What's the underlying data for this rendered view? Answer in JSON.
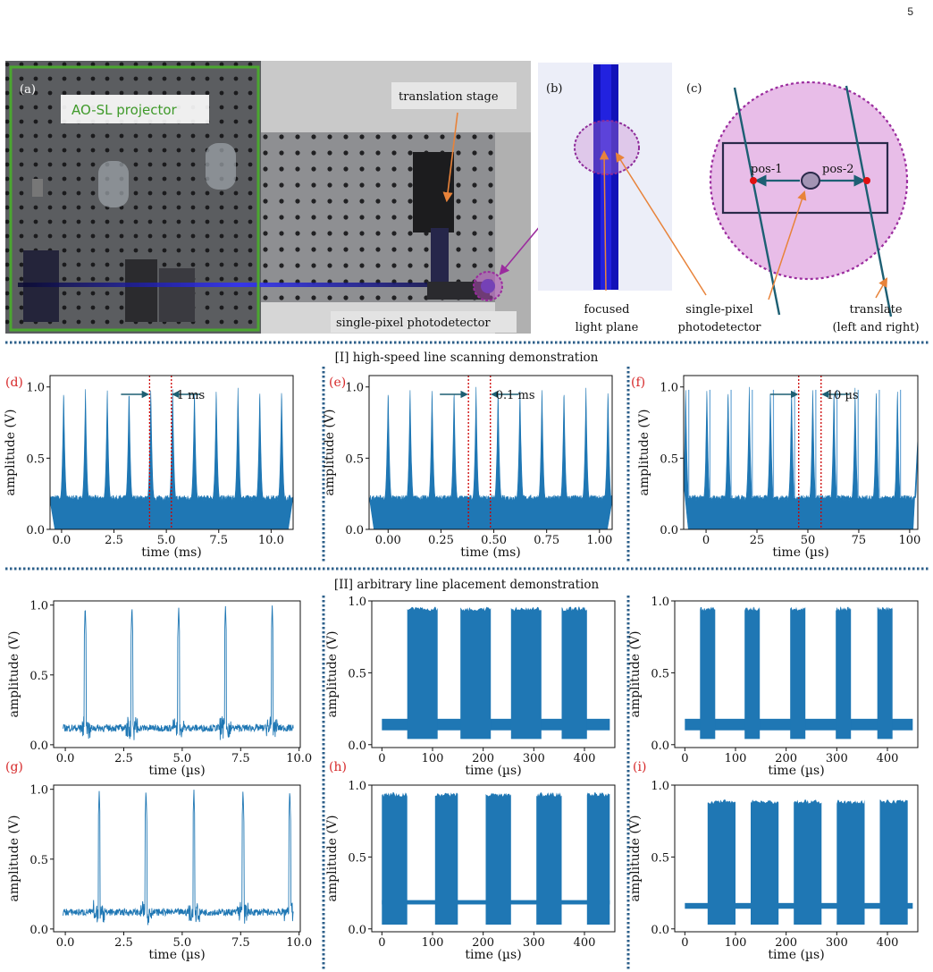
{
  "page_number": "5",
  "photo_panel": {
    "label_a": "(a)",
    "projector_label": "AO-SL projector",
    "translation_stage": "translation stage",
    "photodetector": "single-pixel photodetector"
  },
  "panel_b": {
    "label": "(b)",
    "caption_1": "focused",
    "caption_2": "light plane"
  },
  "panel_c": {
    "label": "(c)",
    "pos1": "pos-1",
    "pos2": "pos-2",
    "detector_1": "single-pixel",
    "detector_2": "photodetector",
    "translate_1": "translate",
    "translate_2": "(left and right)"
  },
  "section_1_title": "[I] high-speed line scanning demonstration",
  "section_2_title": "[II] arbitrary line placement demonstration",
  "colors": {
    "signal": "#1f77b4",
    "label_red": "#d62728",
    "divider": "#2c5f8a",
    "marker": "#cc0000"
  },
  "chart_data": [
    {
      "id": "d",
      "label": "(d)",
      "type": "line",
      "xlabel": "time (ms)",
      "ylabel": "amplitude (V)",
      "xlim": [
        -0.55,
        11.05
      ],
      "ylim": [
        0,
        1.08
      ],
      "xticks": [
        "0.0",
        "2.5",
        "5.0",
        "7.5",
        "10.0"
      ],
      "xtick_values": [
        0,
        2.5,
        5,
        7.5,
        10
      ],
      "yticks": [
        "0.0",
        "0.5",
        "1.0"
      ],
      "ytick_values": [
        0,
        0.5,
        1.0
      ],
      "baseline": 0.22,
      "peak": 1.0,
      "pulse_period": 1.04,
      "first_peak": 0.1,
      "markers": [
        4.2,
        5.24
      ],
      "annotation": "1 ms"
    },
    {
      "id": "e",
      "label": "(e)",
      "type": "line",
      "xlabel": "time (ms)",
      "ylabel": "amplitude (V)",
      "xlim": [
        -0.09,
        1.06
      ],
      "ylim": [
        0,
        1.08
      ],
      "xticks": [
        "0.00",
        "0.25",
        "0.50",
        "0.75",
        "1.00"
      ],
      "xtick_values": [
        0,
        0.25,
        0.5,
        0.75,
        1.0
      ],
      "yticks": [
        "0.0",
        "0.5",
        "1.0"
      ],
      "ytick_values": [
        0,
        0.5,
        1.0
      ],
      "baseline": 0.22,
      "peak": 1.0,
      "pulse_period": 0.104,
      "first_peak": 0.0,
      "markers": [
        0.38,
        0.484
      ],
      "annotation": "0.1 ms"
    },
    {
      "id": "f",
      "label": "(f)",
      "type": "line",
      "xlabel": "time (µs)",
      "ylabel": "amplitude (V)",
      "xlim": [
        -11,
        104
      ],
      "ylim": [
        0,
        1.08
      ],
      "xticks": [
        "0",
        "25",
        "50",
        "75",
        "100"
      ],
      "xtick_values": [
        0,
        25,
        50,
        75,
        100
      ],
      "yticks": [
        "0.0",
        "0.5",
        "1.0"
      ],
      "ytick_values": [
        0,
        0.5,
        1.0
      ],
      "baseline": 0.22,
      "peak": 1.0,
      "pulse_period": 10.4,
      "first_peak": -10,
      "markers": [
        45.5,
        56.5
      ],
      "annotation": "10 µs"
    },
    {
      "id": "g_top",
      "label": "",
      "type": "line",
      "xlabel": "time (µs)",
      "ylabel": "amplitude (V)",
      "xlim": [
        -0.5,
        10.05
      ],
      "ylim": [
        -0.02,
        1.03
      ],
      "xticks": [
        "0.0",
        "2.5",
        "5.0",
        "7.5",
        "10.0"
      ],
      "xtick_values": [
        0,
        2.5,
        5,
        7.5,
        10
      ],
      "yticks": [
        "0.0",
        "0.5",
        "1.0"
      ],
      "ytick_values": [
        0,
        0.5,
        1.0
      ],
      "baseline": 0.12,
      "peaks": [
        0.85,
        2.85,
        4.85,
        6.85,
        8.85
      ]
    },
    {
      "id": "g",
      "label": "(g)",
      "type": "line",
      "xlabel": "time (µs)",
      "ylabel": "amplitude (V)",
      "xlim": [
        -0.5,
        10.05
      ],
      "ylim": [
        -0.02,
        1.03
      ],
      "xticks": [
        "0.0",
        "2.5",
        "5.0",
        "7.5",
        "10.0"
      ],
      "xtick_values": [
        0,
        2.5,
        5,
        7.5,
        10
      ],
      "yticks": [
        "0.0",
        "0.5",
        "1.0"
      ],
      "ytick_values": [
        0,
        0.5,
        1.0
      ],
      "baseline": 0.12,
      "peaks": [
        1.45,
        3.45,
        5.5,
        7.6,
        9.6
      ]
    },
    {
      "id": "h_top",
      "label": "",
      "type": "area",
      "xlabel": "time (µs)",
      "ylabel": "amplitude (V)",
      "xlim": [
        -20,
        460
      ],
      "ylim": [
        -0.02,
        1.0
      ],
      "xticks": [
        "0",
        "100",
        "200",
        "300",
        "400"
      ],
      "xtick_values": [
        0,
        100,
        200,
        300,
        400
      ],
      "yticks": [
        "0.0",
        "0.5",
        "1.0"
      ],
      "ytick_values": [
        0,
        0.5,
        1.0
      ],
      "base_low": 0.1,
      "base_high": 0.18,
      "high_low": 0.04,
      "high_high": 0.96,
      "blocks": [
        [
          50,
          110
        ],
        [
          155,
          215
        ],
        [
          255,
          315
        ],
        [
          355,
          405
        ]
      ]
    },
    {
      "id": "h",
      "label": "(h)",
      "type": "area",
      "xlabel": "time (µs)",
      "ylabel": "amplitude (V)",
      "xlim": [
        -20,
        460
      ],
      "ylim": [
        -0.02,
        1.0
      ],
      "xticks": [
        "0",
        "100",
        "200",
        "300",
        "400"
      ],
      "xtick_values": [
        0,
        100,
        200,
        300,
        400
      ],
      "yticks": [
        "0.0",
        "0.5",
        "1.0"
      ],
      "ytick_values": [
        0,
        0.5,
        1.0
      ],
      "base_low": 0.17,
      "base_high": 0.2,
      "high_low": 0.03,
      "high_high": 0.95,
      "blocks": [
        [
          0,
          50
        ],
        [
          105,
          150
        ],
        [
          205,
          255
        ],
        [
          305,
          355
        ],
        [
          405,
          450
        ]
      ]
    },
    {
      "id": "i_top",
      "label": "",
      "type": "area",
      "xlabel": "time (µs)",
      "ylabel": "amplitude (V)",
      "xlim": [
        -20,
        460
      ],
      "ylim": [
        -0.02,
        1.0
      ],
      "xticks": [
        "0",
        "100",
        "200",
        "300",
        "400"
      ],
      "xtick_values": [
        0,
        100,
        200,
        300,
        400
      ],
      "yticks": [
        "0.0",
        "0.5",
        "1.0"
      ],
      "ytick_values": [
        0,
        0.5,
        1.0
      ],
      "base_low": 0.1,
      "base_high": 0.18,
      "high_low": 0.04,
      "high_high": 0.96,
      "blocks": [
        [
          30,
          60
        ],
        [
          118,
          148
        ],
        [
          208,
          238
        ],
        [
          298,
          328
        ],
        [
          380,
          410
        ]
      ]
    },
    {
      "id": "i",
      "label": "(i)",
      "type": "area",
      "xlabel": "time (µs)",
      "ylabel": "amplitude (V)",
      "xlim": [
        -20,
        460
      ],
      "ylim": [
        -0.02,
        1.0
      ],
      "xticks": [
        "0",
        "100",
        "200",
        "300",
        "400"
      ],
      "xtick_values": [
        0,
        100,
        200,
        300,
        400
      ],
      "yticks": [
        "0.0",
        "0.5",
        "1.0"
      ],
      "ytick_values": [
        0,
        0.5,
        1.0
      ],
      "base_low": 0.14,
      "base_high": 0.18,
      "high_low": 0.03,
      "high_high": 0.9,
      "blocks": [
        [
          45,
          100
        ],
        [
          130,
          185
        ],
        [
          215,
          270
        ],
        [
          300,
          355
        ],
        [
          385,
          440
        ]
      ]
    }
  ]
}
